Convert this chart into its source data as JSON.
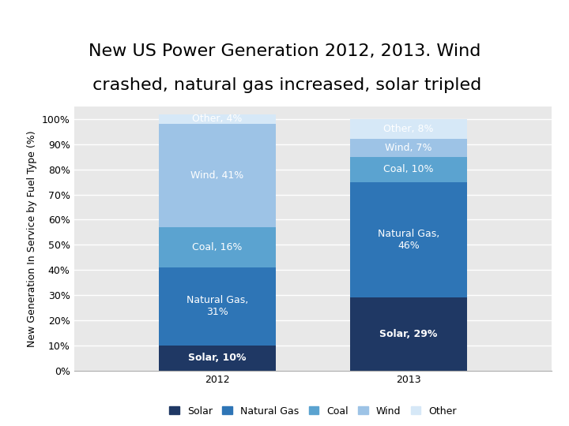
{
  "title_line1": "New US Power Generation 2012, 2013. Wind",
  "title_line2": " crashed, natural gas increased, solar tripled",
  "ylabel": "New Generation In Service by Fuel Type (%)",
  "years": [
    "2012",
    "2013"
  ],
  "categories": [
    "Solar",
    "Natural Gas",
    "Coal",
    "Wind",
    "Other"
  ],
  "values_2012": [
    10,
    31,
    16,
    41,
    4
  ],
  "values_2013": [
    29,
    46,
    10,
    7,
    8
  ],
  "colors": {
    "Solar": "#1f3864",
    "Natural Gas": "#2e75b6",
    "Coal": "#5ba3d0",
    "Wind": "#9dc3e6",
    "Other": "#d6e8f7"
  },
  "labels_2012": {
    "Solar": "Solar, 10%",
    "Natural Gas": "Natural Gas,\n31%",
    "Coal": "Coal, 16%",
    "Wind": "Wind, 41%",
    "Other": "Other, 4%"
  },
  "labels_2013": {
    "Solar": "Solar, 29%",
    "Natural Gas": "Natural Gas,\n46%",
    "Coal": "Coal, 10%",
    "Wind": "Wind, 7%",
    "Other": "Other, 8%"
  },
  "background_color": "#ffffff",
  "plot_area_color": "#e8e8e8",
  "bar_width": 0.22,
  "bar_positions": [
    0.32,
    0.68
  ],
  "title_fontsize": 16,
  "label_fontsize": 9,
  "tick_fontsize": 9,
  "legend_fontsize": 9,
  "ylabel_fontsize": 9
}
